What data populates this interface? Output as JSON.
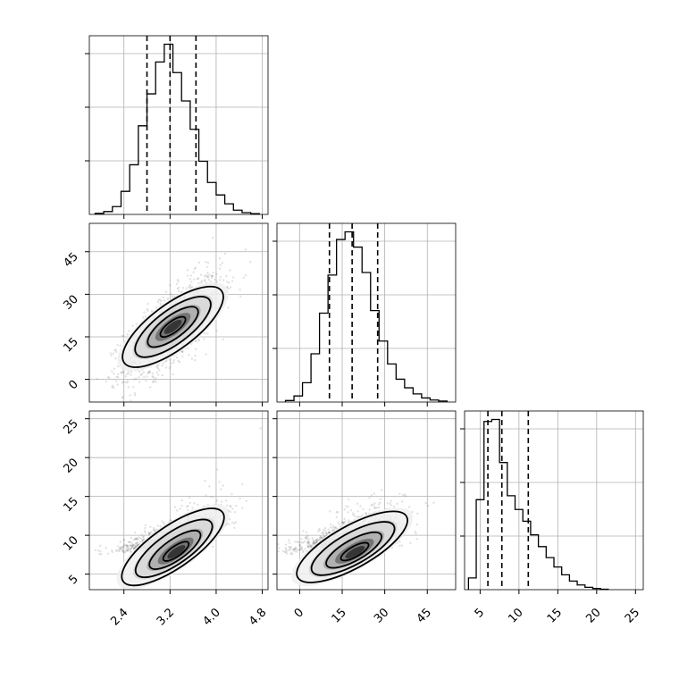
{
  "chart_data": {
    "type": "corner",
    "title": "",
    "parameters": [
      {
        "index": 0,
        "range": [
          1.8,
          4.9
        ],
        "ticks": [
          2.4,
          3.2,
          4.0,
          4.8
        ],
        "tick_labels": [
          "2.4",
          "3.2",
          "4.0",
          "4.8"
        ]
      },
      {
        "index": 1,
        "range": [
          -8,
          55
        ],
        "ticks": [
          0,
          15,
          30,
          45
        ],
        "tick_labels": [
          "0",
          "15",
          "30",
          "45"
        ]
      },
      {
        "index": 2,
        "range": [
          3,
          26
        ],
        "ticks": [
          5,
          10,
          15,
          20,
          25
        ],
        "tick_labels": [
          "5",
          "10",
          "15",
          "20",
          "25"
        ]
      }
    ],
    "histograms": [
      {
        "param": 0,
        "bin_edges": [
          1.9,
          2.05,
          2.2,
          2.35,
          2.5,
          2.65,
          2.8,
          2.95,
          3.1,
          3.25,
          3.4,
          3.55,
          3.7,
          3.85,
          4.0,
          4.15,
          4.3,
          4.45,
          4.6,
          4.75
        ],
        "counts": [
          3,
          8,
          22,
          65,
          140,
          250,
          340,
          430,
          480,
          400,
          320,
          240,
          150,
          90,
          55,
          30,
          12,
          5,
          2
        ],
        "quantiles": [
          2.8,
          3.2,
          3.65
        ]
      },
      {
        "param": 1,
        "bin_edges": [
          -5,
          -2,
          1,
          4,
          7,
          10,
          13,
          16,
          19,
          22,
          25,
          28,
          31,
          34,
          37,
          40,
          43,
          46,
          49,
          52
        ],
        "counts": [
          3,
          12,
          38,
          95,
          175,
          250,
          320,
          335,
          305,
          255,
          180,
          120,
          75,
          45,
          28,
          16,
          8,
          4,
          2
        ],
        "quantiles": [
          10.5,
          18.5,
          27.5
        ]
      },
      {
        "param": 2,
        "bin_edges": [
          3.5,
          4.5,
          5.5,
          6.5,
          7.5,
          8.5,
          9.5,
          10.5,
          11.5,
          12.5,
          13.5,
          14.5,
          15.5,
          16.5,
          17.5,
          18.5,
          19.5,
          20.5,
          21.5
        ],
        "counts": [
          30,
          230,
          430,
          435,
          325,
          240,
          205,
          175,
          140,
          110,
          82,
          58,
          38,
          22,
          12,
          6,
          3,
          1
        ],
        "quantiles": [
          6.0,
          7.8,
          11.2
        ]
      }
    ],
    "correlations": [
      {
        "x_param": 0,
        "y_param": 1,
        "x_mean": 3.25,
        "x_std": 0.42,
        "y_mean": 18.5,
        "y_std": 8.8,
        "correlation": 0.72
      },
      {
        "x_param": 0,
        "y_param": 2,
        "x_mean": 3.25,
        "x_std": 0.42,
        "y_mean": 8.5,
        "y_std": 3.0,
        "correlation": 0.72
      },
      {
        "x_param": 1,
        "y_param": 2,
        "x_mean": 18.5,
        "x_std": 8.8,
        "y_mean": 8.5,
        "y_std": 3.0,
        "correlation": 0.6
      }
    ],
    "contour_levels_sigma": [
      0.5,
      1.0,
      1.5,
      2.0
    ],
    "grid": true
  }
}
